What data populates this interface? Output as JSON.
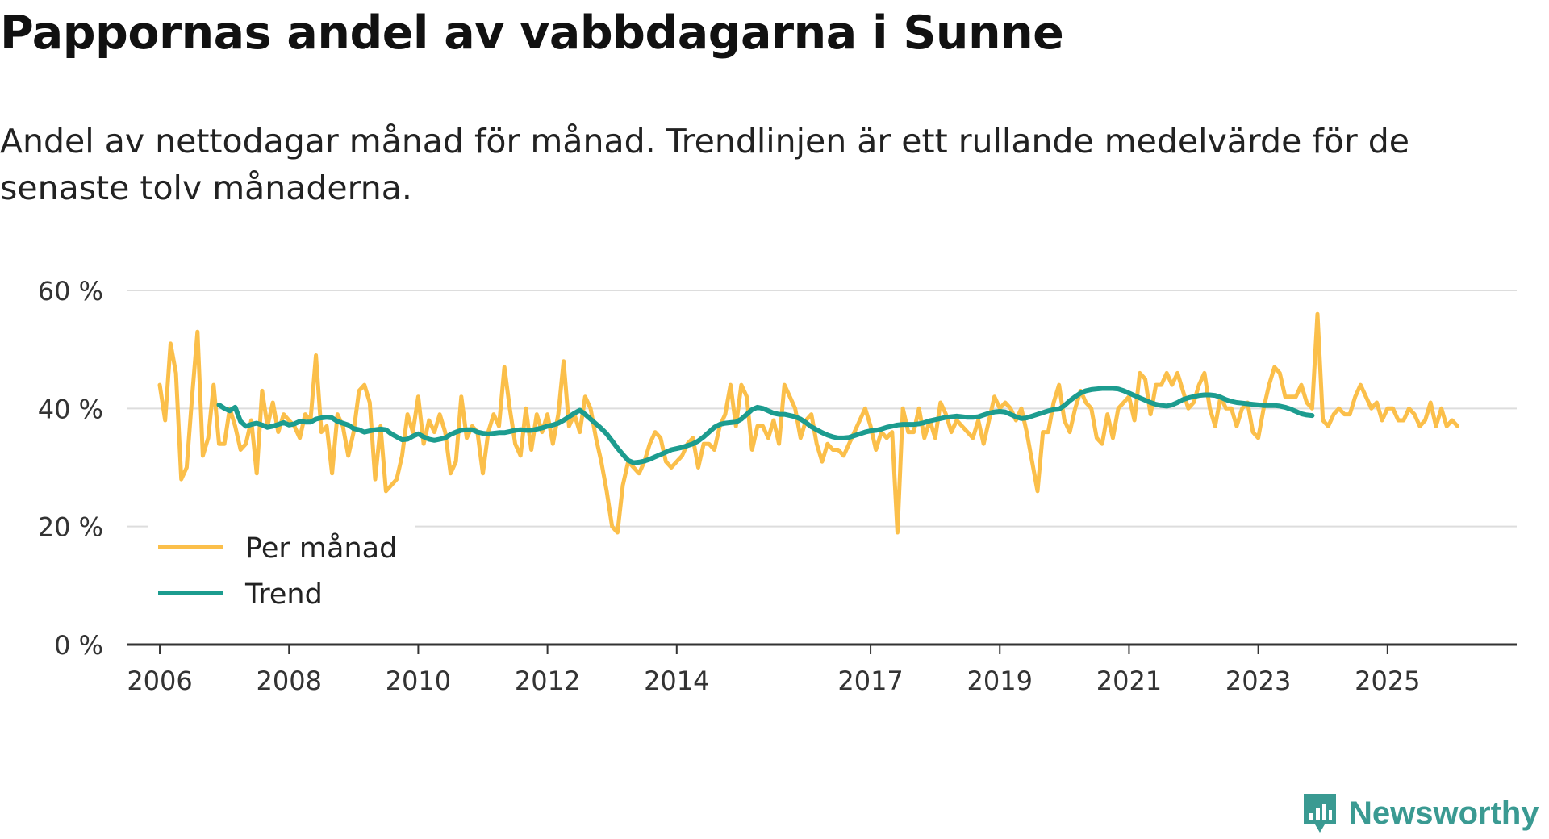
{
  "header": {
    "title": "Pappornas andel av vabbdagarna i Sunne",
    "subtitle": "Andel av nettodagar månad för månad. Trendlinjen är ett rullande medelvärde för de senaste tolv månaderna."
  },
  "brand": {
    "name": "Newsworthy",
    "icon": "bar-chart-speech-icon",
    "color": "#3a9a92"
  },
  "chart_data": {
    "type": "line",
    "title": "Pappornas andel av vabbdagarna i Sunne",
    "xlabel": "",
    "ylabel": "",
    "xlim": [
      2005.5,
      2027.0
    ],
    "ylim": [
      0,
      60
    ],
    "yticks": [
      0,
      20,
      40,
      60
    ],
    "ytick_labels": [
      "0 %",
      "20 %",
      "40 %",
      "60 %"
    ],
    "xticks": [
      2006,
      2008,
      2010,
      2012,
      2014,
      2017,
      2019,
      2021,
      2023,
      2025
    ],
    "xtick_labels": [
      "2006",
      "2008",
      "2010",
      "2012",
      "2014",
      "2017",
      "2019",
      "2021",
      "2023",
      "2025"
    ],
    "grid": true,
    "legend_position": "bottom-left",
    "series": [
      {
        "name": "Per månad",
        "color": "#fbbf4a",
        "x_start": 2006.0,
        "x_step": 0.0833333,
        "values": [
          44,
          38,
          51,
          46,
          28,
          30,
          42,
          53,
          32,
          35,
          44,
          34,
          34,
          40,
          37,
          33,
          34,
          38,
          29,
          43,
          37,
          41,
          36,
          39,
          38,
          37,
          35,
          39,
          38,
          49,
          36,
          37,
          29,
          39,
          37,
          32,
          36,
          43,
          44,
          41,
          28,
          37,
          26,
          27,
          28,
          32,
          39,
          36,
          42,
          34,
          38,
          36,
          39,
          36,
          29,
          31,
          42,
          35,
          37,
          36,
          29,
          36,
          39,
          37,
          47,
          40,
          34,
          32,
          40,
          33,
          39,
          36,
          39,
          34,
          39,
          48,
          37,
          39,
          36,
          42,
          40,
          35,
          31,
          26,
          20,
          19,
          27,
          31,
          30,
          29,
          31,
          34,
          36,
          35,
          31,
          30,
          31,
          32,
          34,
          35,
          30,
          34,
          34,
          33,
          37,
          39,
          44,
          37,
          44,
          42,
          33,
          37,
          37,
          35,
          38,
          34,
          44,
          42,
          40,
          35,
          38,
          39,
          34,
          31,
          34,
          33,
          33,
          32,
          34,
          36,
          38,
          40,
          37,
          33,
          36,
          35,
          36,
          19,
          40,
          36,
          36,
          40,
          35,
          38,
          35,
          41,
          39,
          36,
          38,
          37,
          36,
          35,
          38,
          34,
          38,
          42,
          40,
          41,
          40,
          38,
          40,
          36,
          31,
          26,
          36,
          36,
          41,
          44,
          38,
          36,
          40,
          43,
          41,
          40,
          35,
          34,
          39,
          35,
          40,
          41,
          42,
          38,
          46,
          45,
          39,
          44,
          44,
          46,
          44,
          46,
          43,
          40,
          41,
          44,
          46,
          40,
          37,
          42,
          40,
          40,
          37,
          40,
          41,
          36,
          35,
          40,
          44,
          47,
          46,
          42,
          42,
          42,
          44,
          41,
          40,
          56,
          38,
          37,
          39,
          40,
          39,
          39,
          42,
          44,
          42,
          40,
          41,
          38,
          40,
          40,
          38,
          38,
          40,
          39,
          37,
          38,
          41,
          37,
          40,
          37,
          38,
          37
        ]
      },
      {
        "name": "Trend",
        "color": "#1c9c8f",
        "x_start": 2006.9167,
        "x_step": 0.0833333,
        "values": [
          40.6,
          40.0,
          39.6,
          40.2,
          37.8,
          37.0,
          37.3,
          37.5,
          37.2,
          36.8,
          37.0,
          37.3,
          37.6,
          37.2,
          37.4,
          37.8,
          37.7,
          37.7,
          38.2,
          38.4,
          38.5,
          38.4,
          37.8,
          37.5,
          37.2,
          36.6,
          36.4,
          36.0,
          36.2,
          36.4,
          36.5,
          36.4,
          35.7,
          35.2,
          34.7,
          34.8,
          35.3,
          35.7,
          35.2,
          34.8,
          34.6,
          34.8,
          35.0,
          35.6,
          36.0,
          36.3,
          36.4,
          36.4,
          36.0,
          35.8,
          35.7,
          35.8,
          35.9,
          35.9,
          36.1,
          36.3,
          36.4,
          36.3,
          36.3,
          36.5,
          36.7,
          37.0,
          37.2,
          37.5,
          38.0,
          38.6,
          39.2,
          39.7,
          39.0,
          38.2,
          37.4,
          36.6,
          35.7,
          34.5,
          33.3,
          32.2,
          31.2,
          30.8,
          30.9,
          31.1,
          31.4,
          31.8,
          32.2,
          32.6,
          33.0,
          33.2,
          33.4,
          33.7,
          34.0,
          34.5,
          35.2,
          36.0,
          36.8,
          37.3,
          37.5,
          37.6,
          37.7,
          38.2,
          39.0,
          39.8,
          40.2,
          40.0,
          39.6,
          39.2,
          39.0,
          39.0,
          38.8,
          38.6,
          38.2,
          37.6,
          36.9,
          36.4,
          35.9,
          35.5,
          35.2,
          35.0,
          35.0,
          35.1,
          35.4,
          35.7,
          36.0,
          36.2,
          36.3,
          36.5,
          36.8,
          37.0,
          37.2,
          37.3,
          37.3,
          37.3,
          37.4,
          37.6,
          37.9,
          38.1,
          38.3,
          38.5,
          38.6,
          38.7,
          38.6,
          38.5,
          38.5,
          38.6,
          38.9,
          39.2,
          39.4,
          39.5,
          39.4,
          39.0,
          38.6,
          38.3,
          38.4,
          38.7,
          39.0,
          39.3,
          39.6,
          39.8,
          39.9,
          40.5,
          41.3,
          42.0,
          42.6,
          43.0,
          43.2,
          43.3,
          43.4,
          43.4,
          43.4,
          43.3,
          43.0,
          42.6,
          42.2,
          41.8,
          41.4,
          41.0,
          40.7,
          40.5,
          40.4,
          40.6,
          41.0,
          41.5,
          41.8,
          42.0,
          42.2,
          42.3,
          42.3,
          42.2,
          41.9,
          41.5,
          41.2,
          41.0,
          40.9,
          40.8,
          40.7,
          40.6,
          40.5,
          40.5,
          40.5,
          40.4,
          40.2,
          39.9,
          39.5,
          39.1,
          38.9,
          38.8
        ]
      }
    ]
  }
}
